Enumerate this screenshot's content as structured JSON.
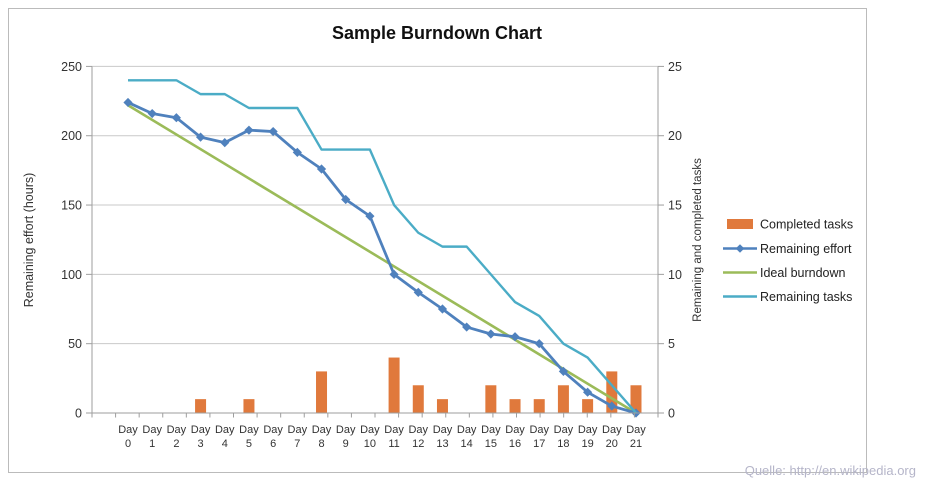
{
  "chart_data": {
    "type": "combo-bar-line",
    "title": "Sample Burndown Chart",
    "categories": [
      "Day 0",
      "Day 1",
      "Day 2",
      "Day 3",
      "Day 4",
      "Day 5",
      "Day 6",
      "Day 7",
      "Day 8",
      "Day 9",
      "Day 10",
      "Day 11",
      "Day 12",
      "Day 13",
      "Day 14",
      "Day 15",
      "Day 16",
      "Day 17",
      "Day 18",
      "Day 19",
      "Day 20",
      "Day 21"
    ],
    "category_label_top": "Day",
    "series": [
      {
        "name": "Completed tasks",
        "type": "bar",
        "axis": "right",
        "color": "#E0793C",
        "values": [
          0,
          0,
          0,
          1,
          0,
          1,
          0,
          0,
          3,
          0,
          0,
          4,
          2,
          1,
          0,
          2,
          1,
          1,
          2,
          1,
          3,
          2
        ]
      },
      {
        "name": "Remaining effort",
        "type": "line-diamond",
        "axis": "left",
        "color": "#4F81BD",
        "values": [
          224,
          216,
          213,
          199,
          195,
          204,
          203,
          188,
          176,
          154,
          142,
          100,
          87,
          75,
          62,
          57,
          55,
          50,
          30,
          15,
          5,
          0
        ]
      },
      {
        "name": "Ideal burndown",
        "type": "line-straight",
        "axis": "left",
        "color": "#9BBB59",
        "start": 222,
        "end": 0
      },
      {
        "name": "Remaining tasks",
        "type": "line",
        "axis": "right",
        "color": "#4BACC6",
        "values": [
          24,
          24,
          24,
          23,
          23,
          22,
          22,
          22,
          19,
          19,
          19,
          15,
          13,
          12,
          12,
          10,
          8,
          7,
          5,
          4,
          2,
          0
        ]
      }
    ],
    "left_axis": {
      "label": "Remaining effort (hours)",
      "ticks": [
        0,
        50,
        100,
        150,
        200,
        250
      ],
      "range": [
        0,
        250
      ]
    },
    "right_axis": {
      "label": "Remaining and completed tasks",
      "ticks": [
        0,
        5,
        10,
        15,
        20,
        25
      ],
      "range": [
        0,
        25
      ]
    },
    "legend_position": "right",
    "grid": true
  },
  "source_note": "Quelle: http://en.wikipedia.org",
  "style_colors": {
    "gridline": "#C9C9C9",
    "axis": "#9E9E9E",
    "tick_text": "#333333",
    "title_text": "#111111",
    "source_text": "#B5B5C9",
    "frame": "#BBBBBB"
  }
}
